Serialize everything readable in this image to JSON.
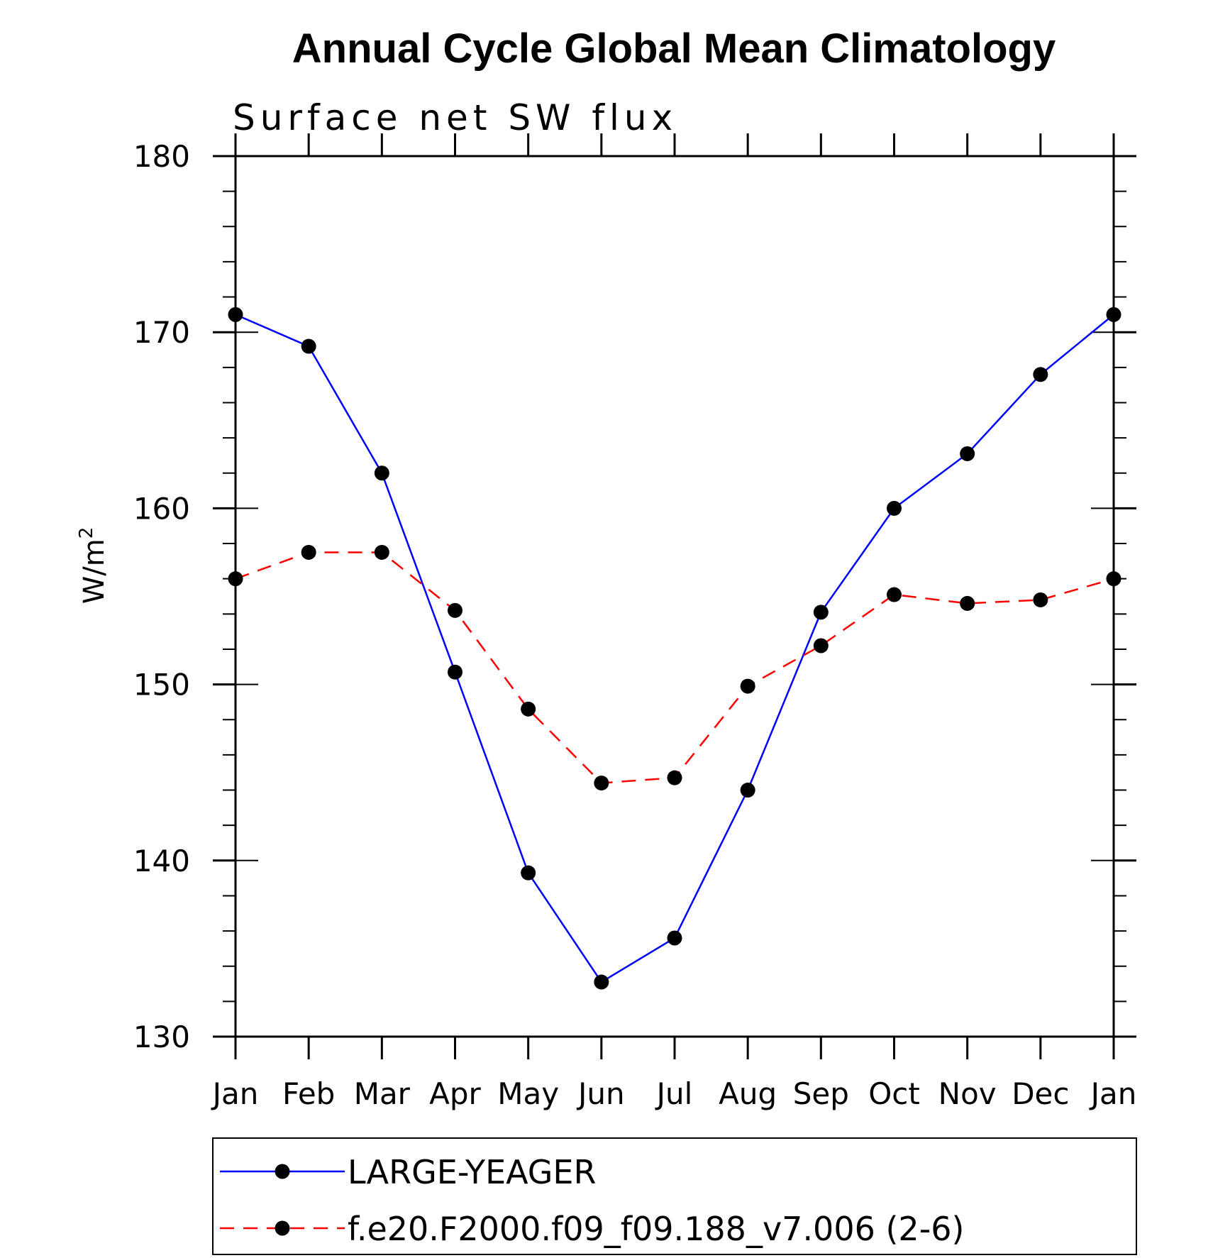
{
  "chart_data": {
    "type": "line",
    "title": "Annual Cycle Global Mean Climatology",
    "subtitle": "Surface net SW flux",
    "ylabel_base": "W/m",
    "ylabel_sup": "2",
    "xlabel": "",
    "categories": [
      "Jan",
      "Feb",
      "Mar",
      "Apr",
      "May",
      "Jun",
      "Jul",
      "Aug",
      "Sep",
      "Oct",
      "Nov",
      "Dec",
      "Jan"
    ],
    "ylim": [
      130,
      180
    ],
    "yticks": [
      130,
      140,
      150,
      160,
      170,
      180
    ],
    "grid": false,
    "legend_position": "bottom",
    "series": [
      {
        "name": "LARGE-YEAGER",
        "color": "#0000ff",
        "line_style": "solid",
        "marker": "filled-circle",
        "values": [
          171.0,
          169.2,
          162.0,
          150.7,
          139.3,
          133.1,
          135.6,
          144.0,
          154.1,
          160.0,
          163.1,
          167.6,
          171.0
        ]
      },
      {
        "name": "f.e20.F2000.f09_f09.188_v7.006 (2-6)",
        "color": "#ff0000",
        "line_style": "dashed",
        "marker": "filled-circle",
        "values": [
          156.0,
          157.5,
          157.5,
          154.2,
          148.6,
          144.4,
          144.7,
          149.9,
          152.2,
          155.1,
          154.6,
          154.8,
          156.0
        ]
      }
    ]
  }
}
